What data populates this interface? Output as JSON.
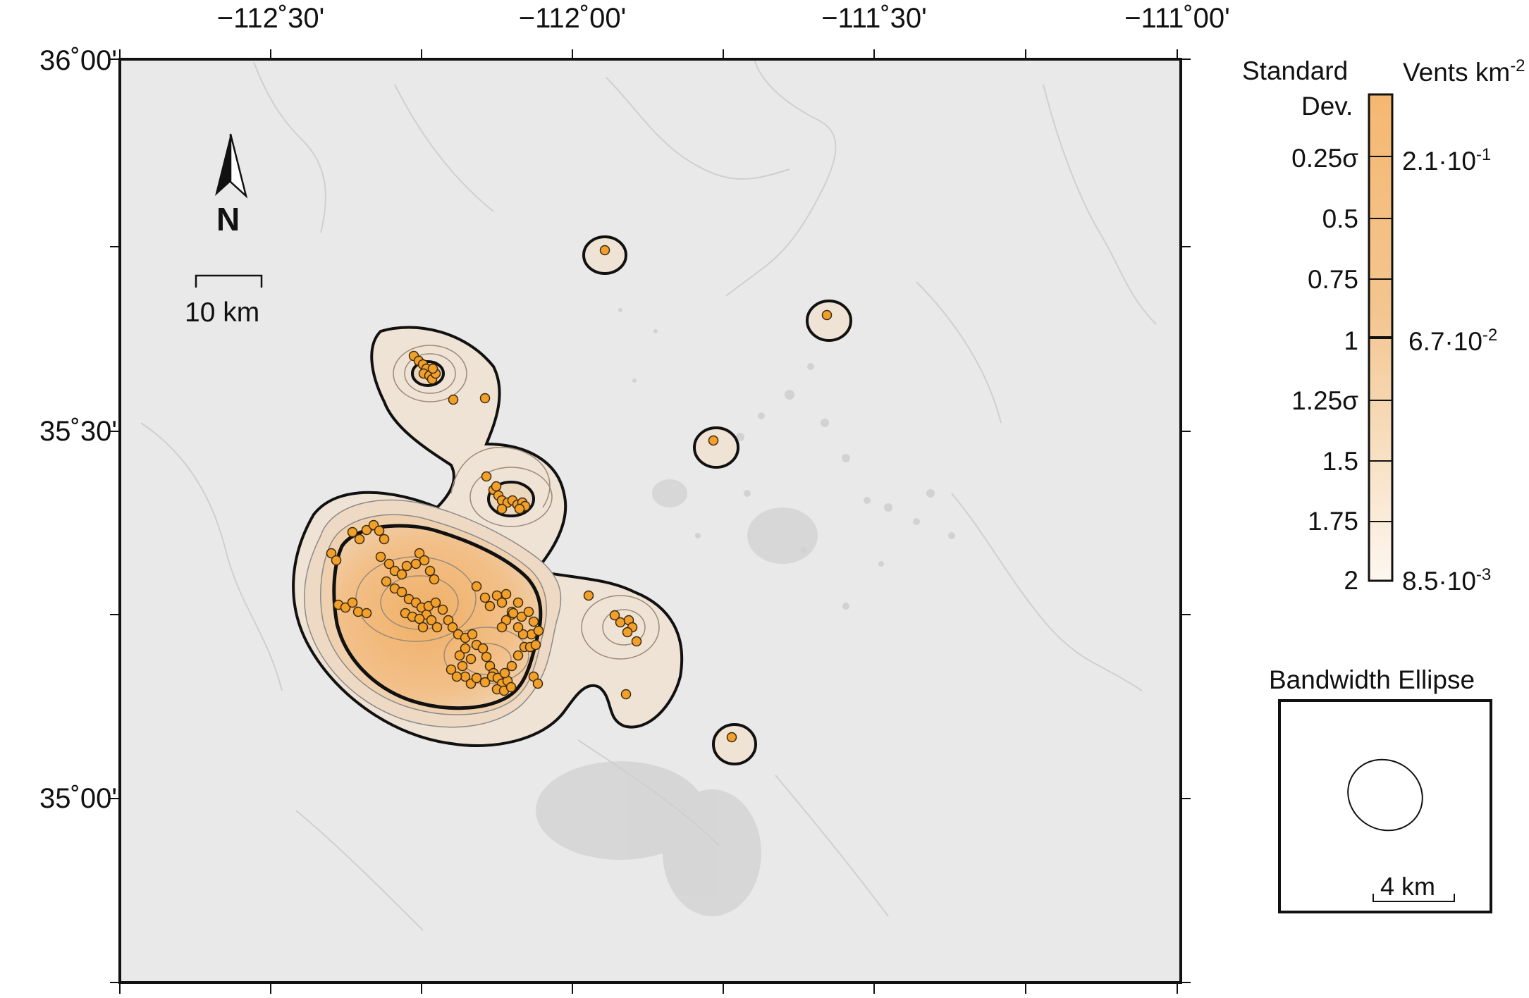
{
  "map": {
    "lon_labels": [
      "−112˚30'",
      "−112˚00'",
      "−111˚30'",
      "−111˚00'"
    ],
    "lat_labels": [
      "36˚00'",
      "35˚30'",
      "35˚00'"
    ],
    "north_label": "N",
    "scalebar_label": "10 km"
  },
  "legend": {
    "title_left_1": "Standard",
    "title_left_2": "Dev.",
    "title_right": "Vents km",
    "title_right_exp": "-2",
    "sd_ticks": [
      "0.25σ",
      "0.5",
      "0.75",
      "1",
      "1.25σ",
      "1.5",
      "1.75",
      "2"
    ],
    "density_ticks": [
      {
        "base": "2.1·10",
        "exp": "-1"
      },
      {
        "base": "6.7·10",
        "exp": "-2"
      },
      {
        "base": "8.5·10",
        "exp": "-3"
      }
    ],
    "colors": {
      "high": "#f5b870",
      "low": "#fdf6ee"
    }
  },
  "bandwidth": {
    "title": "Bandwidth Ellipse",
    "scale_label": "4 km"
  },
  "colors": {
    "vent_fill": "#f2a02a",
    "contour_bold": "#111111",
    "map_bg": "#e9e9e9"
  }
}
